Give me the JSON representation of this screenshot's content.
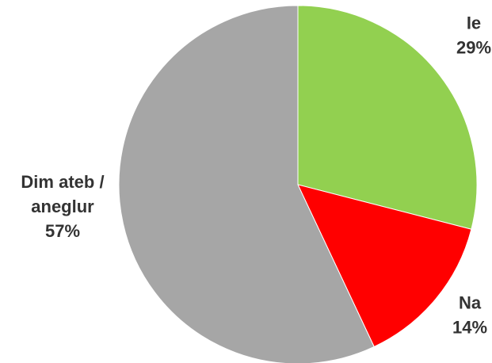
{
  "chart_data": {
    "type": "pie",
    "title": "",
    "slices": [
      {
        "label_lines": [
          "Ie"
        ],
        "percent_label": "29%",
        "value": 29,
        "color": "#92d050"
      },
      {
        "label_lines": [
          "Na"
        ],
        "percent_label": "14%",
        "value": 14,
        "color": "#ff0000"
      },
      {
        "label_lines": [
          "Dim ateb /",
          "aneglur"
        ],
        "percent_label": "57%",
        "value": 57,
        "color": "#a6a6a6"
      }
    ],
    "start_angle_deg": 0,
    "direction": "clockwise",
    "legend": "none"
  }
}
